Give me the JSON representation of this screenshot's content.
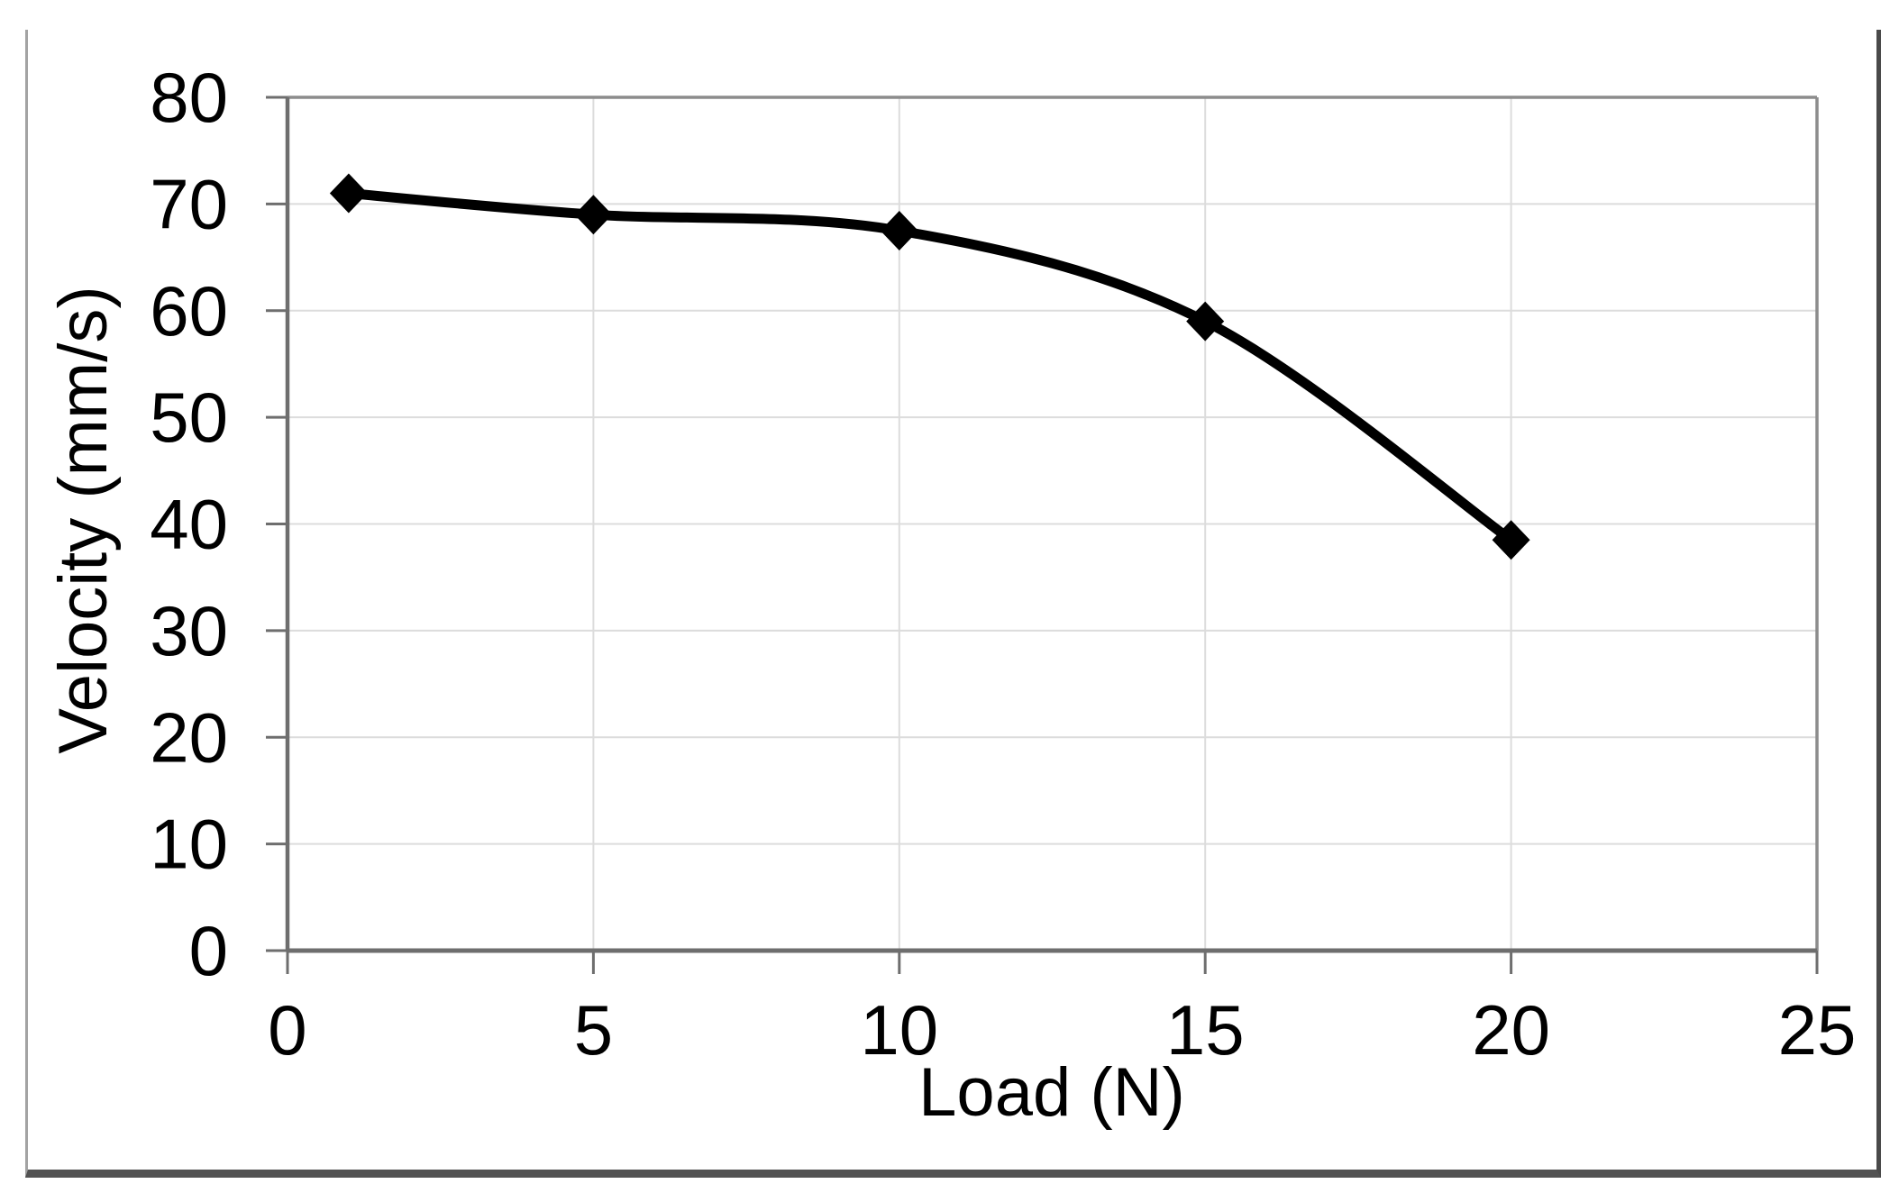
{
  "chart_data": {
    "type": "line",
    "title": "",
    "xlabel": "Load (N)",
    "ylabel": "Velocity (mm/s)",
    "x": [
      1,
      5,
      10,
      15,
      20
    ],
    "y": [
      71,
      69,
      67.5,
      59,
      38.5
    ],
    "xlim": [
      0,
      25
    ],
    "ylim": [
      0,
      80
    ],
    "xticks": [
      0,
      5,
      10,
      15,
      20,
      25
    ],
    "yticks": [
      0,
      10,
      20,
      30,
      40,
      50,
      60,
      70,
      80
    ],
    "grid": true,
    "legend": false,
    "smoothed_line": true,
    "marker": "diamond",
    "line_color": "#000000",
    "marker_color": "#000000",
    "gridline_color": "#dcdcdc",
    "axis_color": "#6e6e6e",
    "plot_border_color": "#8c8c8c",
    "background": "#ffffff"
  }
}
